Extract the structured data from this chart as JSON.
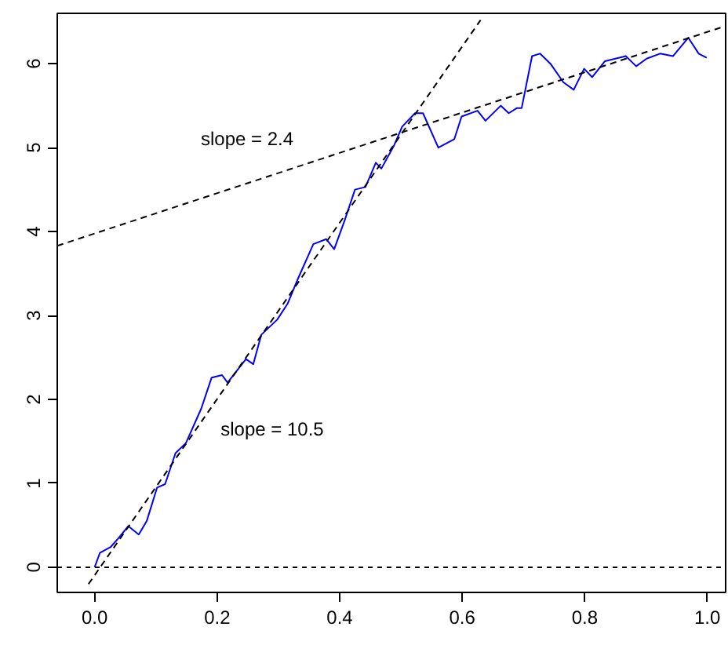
{
  "chart_data": {
    "type": "line",
    "xlim": [
      -0.061,
      1.03
    ],
    "ylim": [
      -0.3,
      6.6
    ],
    "xticks": [
      {
        "value": 0,
        "label": "0.0"
      },
      {
        "value": 0.2,
        "label": "0.2"
      },
      {
        "value": 0.4,
        "label": "0.4"
      },
      {
        "value": 0.6,
        "label": "0.6"
      },
      {
        "value": 0.8,
        "label": "0.8"
      },
      {
        "value": 1,
        "label": "1.0"
      }
    ],
    "yticks": [
      0,
      1,
      2,
      3,
      4,
      5,
      6
    ],
    "grid": false,
    "marker": "none",
    "ref_lines": [
      {
        "axis": "y",
        "value": 0,
        "label": null,
        "color": "#000000",
        "line_style": "dotted"
      }
    ],
    "annotations": [
      "slope = 2.4",
      "slope = 10.5"
    ],
    "series": [
      {
        "color": "#0000ff",
        "line_style": "solid",
        "x": [
          0,
          0.0085,
          0.026,
          0.038,
          0.055,
          0.072,
          0.085,
          0.102,
          0.115,
          0.132,
          0.149,
          0.174,
          0.191,
          0.208,
          0.217,
          0.247,
          0.259,
          0.272,
          0.298,
          0.315,
          0.332,
          0.357,
          0.378,
          0.391,
          0.408,
          0.425,
          0.442,
          0.459,
          0.468,
          0.489,
          0.502,
          0.523,
          0.536,
          0.561,
          0.587,
          0.599,
          0.625,
          0.638,
          0.663,
          0.676,
          0.689,
          0.697,
          0.714,
          0.727,
          0.744,
          0.765,
          0.782,
          0.799,
          0.812,
          0.833,
          0.867,
          0.884,
          0.901,
          0.923,
          0.944,
          0.969,
          0.986,
          0.999
        ],
        "values": [
          0,
          0.17,
          0.24,
          0.34,
          0.49,
          0.39,
          0.55,
          0.95,
          0.99,
          1.36,
          1.48,
          1.89,
          2.26,
          2.29,
          2.2,
          2.48,
          2.42,
          2.77,
          2.95,
          3.14,
          3.44,
          3.85,
          3.91,
          3.79,
          4.13,
          4.5,
          4.53,
          4.82,
          4.75,
          5.03,
          5.25,
          5.41,
          5.41,
          5.0,
          5.1,
          5.37,
          5.44,
          5.32,
          5.5,
          5.41,
          5.47,
          5.47,
          6.09,
          6.12,
          6.0,
          5.78,
          5.69,
          5.94,
          5.84,
          6.03,
          6.09,
          5.97,
          6.06,
          6.12,
          6.09,
          6.31,
          6.12,
          6.07
        ]
      },
      {
        "color": "#000000",
        "line_style": "dashed",
        "x": [
          -0.01,
          0.63
        ],
        "values": [
          -0.2,
          6.52
        ]
      },
      {
        "color": "#000000",
        "line_style": "dashed",
        "x": [
          -0.061,
          1.03
        ],
        "values": [
          3.83,
          6.45
        ]
      }
    ]
  }
}
